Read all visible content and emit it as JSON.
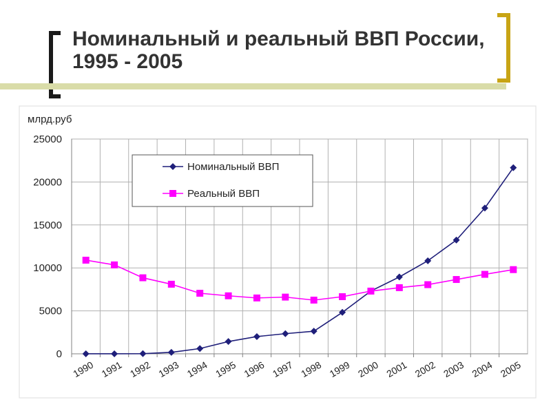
{
  "slide": {
    "title": "Номинальный и реальный ВВП России, 1995 - 2005",
    "accent_colors": {
      "left_bracket": "#1a1a1a",
      "right_bracket": "#c8a415",
      "rule": "#d9dca8"
    }
  },
  "chart_data": {
    "type": "line",
    "title": "",
    "ylabel": "млрд.руб",
    "xlabel": "",
    "ylim": [
      0,
      25000
    ],
    "yticks": [
      0,
      5000,
      10000,
      15000,
      20000,
      25000
    ],
    "categories": [
      "1990",
      "1991",
      "1992",
      "1993",
      "1994",
      "1995",
      "1996",
      "1997",
      "1998",
      "1999",
      "2000",
      "2001",
      "2002",
      "2003",
      "2004",
      "2005"
    ],
    "grid": true,
    "legend_position": "top-left",
    "series": [
      {
        "name": "Номинальный ВВП",
        "color": "#1f1f7a",
        "marker": "diamond",
        "values": [
          1,
          2,
          19,
          172,
          611,
          1429,
          2008,
          2343,
          2630,
          4823,
          7306,
          8944,
          10831,
          13243,
          16966,
          21665
        ]
      },
      {
        "name": "Реальный ВВП",
        "color": "#ff00ff",
        "marker": "square",
        "values": [
          10900,
          10350,
          8850,
          8100,
          7050,
          6750,
          6500,
          6600,
          6250,
          6650,
          7300,
          7700,
          8050,
          8650,
          9250,
          9800
        ]
      }
    ]
  }
}
